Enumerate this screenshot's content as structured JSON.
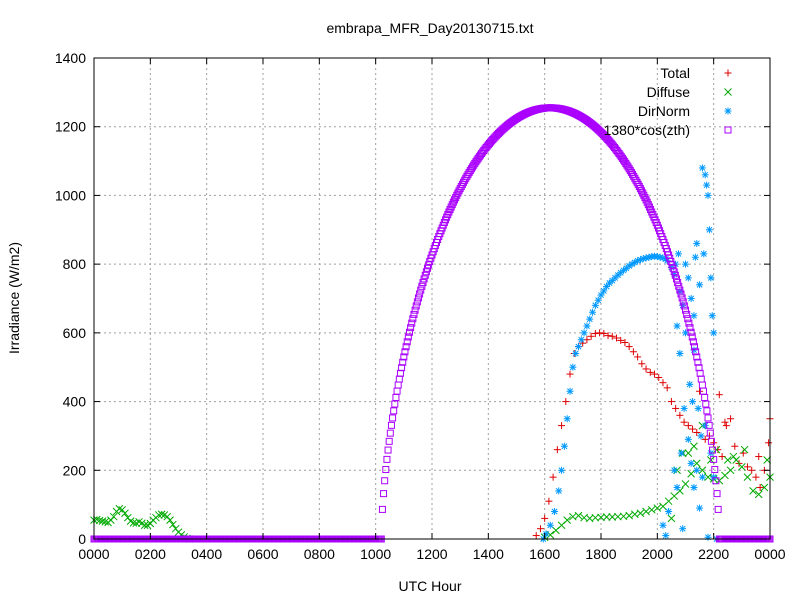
{
  "chart_data": {
    "type": "scatter",
    "title": "embrapa_MFR_Day20130715.txt",
    "xlabel": "UTC Hour",
    "ylabel": "Irradiance (W/m2)",
    "xlim": [
      0,
      24
    ],
    "ylim": [
      0,
      1400
    ],
    "x_ticks": [
      {
        "value": 0,
        "label": "0000"
      },
      {
        "value": 2,
        "label": "0200"
      },
      {
        "value": 4,
        "label": "0400"
      },
      {
        "value": 6,
        "label": "0600"
      },
      {
        "value": 8,
        "label": "0800"
      },
      {
        "value": 10,
        "label": "1000"
      },
      {
        "value": 12,
        "label": "1200"
      },
      {
        "value": 14,
        "label": "1400"
      },
      {
        "value": 16,
        "label": "1600"
      },
      {
        "value": 18,
        "label": "1800"
      },
      {
        "value": 20,
        "label": "2000"
      },
      {
        "value": 22,
        "label": "2200"
      },
      {
        "value": 24,
        "label": "0000"
      }
    ],
    "y_ticks": [
      0,
      200,
      400,
      600,
      800,
      1000,
      1200,
      1400
    ],
    "grid": true,
    "legend_position": "top-right",
    "series": [
      {
        "name": "Total",
        "marker": "plus",
        "color": "#dd0000",
        "points": [
          [
            15.7,
            10
          ],
          [
            15.85,
            30
          ],
          [
            16.0,
            60
          ],
          [
            16.15,
            110
          ],
          [
            16.3,
            180
          ],
          [
            16.45,
            260
          ],
          [
            16.6,
            330
          ],
          [
            16.75,
            400
          ],
          [
            16.9,
            480
          ],
          [
            17.05,
            540
          ],
          [
            17.2,
            560
          ],
          [
            17.35,
            570
          ],
          [
            17.5,
            580
          ],
          [
            17.65,
            590
          ],
          [
            17.8,
            598
          ],
          [
            17.95,
            600
          ],
          [
            18.1,
            598
          ],
          [
            18.25,
            592
          ],
          [
            18.4,
            590
          ],
          [
            18.55,
            585
          ],
          [
            18.7,
            578
          ],
          [
            18.85,
            572
          ],
          [
            19.0,
            560
          ],
          [
            19.15,
            545
          ],
          [
            19.3,
            530
          ],
          [
            19.45,
            510
          ],
          [
            19.6,
            495
          ],
          [
            19.75,
            485
          ],
          [
            19.9,
            480
          ],
          [
            20.05,
            470
          ],
          [
            20.2,
            455
          ],
          [
            20.35,
            440
          ],
          [
            20.5,
            400
          ],
          [
            20.65,
            380
          ],
          [
            20.8,
            360
          ],
          [
            20.95,
            340
          ],
          [
            21.1,
            330
          ],
          [
            21.25,
            320
          ],
          [
            21.4,
            310
          ],
          [
            21.55,
            300
          ],
          [
            21.7,
            290
          ],
          [
            21.85,
            300
          ],
          [
            22.0,
            280
          ],
          [
            22.15,
            260
          ],
          [
            22.3,
            240
          ],
          [
            22.45,
            330
          ],
          [
            22.6,
            350
          ],
          [
            22.75,
            270
          ],
          [
            22.9,
            220
          ],
          [
            23.05,
            250
          ],
          [
            23.2,
            210
          ],
          [
            23.35,
            200
          ],
          [
            23.5,
            180
          ],
          [
            23.65,
            150
          ],
          [
            23.8,
            200
          ],
          [
            23.95,
            280
          ],
          [
            24.0,
            350
          ],
          [
            21.5,
            430
          ],
          [
            22.2,
            420
          ],
          [
            22.4,
            340
          ],
          [
            23.6,
            240
          ]
        ]
      },
      {
        "name": "Diffuse",
        "marker": "cross",
        "color": "#00aa00",
        "points": [
          [
            0.0,
            55
          ],
          [
            0.1,
            57
          ],
          [
            0.2,
            54
          ],
          [
            0.3,
            52
          ],
          [
            0.4,
            50
          ],
          [
            0.5,
            48
          ],
          [
            0.6,
            55
          ],
          [
            0.7,
            65
          ],
          [
            0.8,
            80
          ],
          [
            0.9,
            88
          ],
          [
            1.0,
            85
          ],
          [
            1.1,
            75
          ],
          [
            1.2,
            62
          ],
          [
            1.3,
            52
          ],
          [
            1.4,
            47
          ],
          [
            1.5,
            46
          ],
          [
            1.6,
            50
          ],
          [
            1.7,
            46
          ],
          [
            1.8,
            40
          ],
          [
            1.9,
            40
          ],
          [
            2.0,
            45
          ],
          [
            2.1,
            55
          ],
          [
            2.2,
            62
          ],
          [
            2.3,
            70
          ],
          [
            2.4,
            72
          ],
          [
            2.5,
            70
          ],
          [
            2.6,
            65
          ],
          [
            2.7,
            55
          ],
          [
            2.8,
            42
          ],
          [
            2.9,
            30
          ],
          [
            3.0,
            20
          ],
          [
            3.1,
            12
          ],
          [
            3.2,
            6
          ],
          [
            3.3,
            2
          ],
          [
            3.4,
            0
          ],
          [
            16.0,
            5
          ],
          [
            16.2,
            12
          ],
          [
            16.4,
            25
          ],
          [
            16.6,
            40
          ],
          [
            16.8,
            55
          ],
          [
            17.0,
            65
          ],
          [
            17.2,
            68
          ],
          [
            17.4,
            62
          ],
          [
            17.6,
            60
          ],
          [
            17.8,
            62
          ],
          [
            18.0,
            63
          ],
          [
            18.2,
            64
          ],
          [
            18.4,
            64
          ],
          [
            18.6,
            65
          ],
          [
            18.8,
            66
          ],
          [
            19.0,
            68
          ],
          [
            19.2,
            72
          ],
          [
            19.4,
            75
          ],
          [
            19.6,
            80
          ],
          [
            19.8,
            85
          ],
          [
            20.0,
            90
          ],
          [
            20.2,
            95
          ],
          [
            20.4,
            110
          ],
          [
            20.6,
            125
          ],
          [
            20.8,
            140
          ],
          [
            21.0,
            160
          ],
          [
            21.2,
            190
          ],
          [
            21.4,
            220
          ],
          [
            21.6,
            200
          ],
          [
            21.8,
            180
          ],
          [
            22.0,
            175
          ],
          [
            22.2,
            170
          ],
          [
            22.4,
            185
          ],
          [
            22.6,
            200
          ],
          [
            22.8,
            230
          ],
          [
            23.0,
            210
          ],
          [
            23.2,
            180
          ],
          [
            23.4,
            140
          ],
          [
            23.6,
            130
          ],
          [
            23.8,
            150
          ],
          [
            24.0,
            180
          ],
          [
            20.9,
            250
          ],
          [
            21.3,
            270
          ],
          [
            21.6,
            330
          ],
          [
            22.1,
            260
          ],
          [
            22.7,
            240
          ],
          [
            23.1,
            260
          ],
          [
            23.9,
            230
          ],
          [
            20.5,
            60
          ],
          [
            20.7,
            200
          ],
          [
            21.1,
            250
          ],
          [
            21.9,
            230
          ],
          [
            22.5,
            230
          ]
        ]
      },
      {
        "name": "DirNorm",
        "marker": "star",
        "color": "#0099ff",
        "points": [
          [
            15.95,
            0
          ],
          [
            16.05,
            15
          ],
          [
            16.2,
            40
          ],
          [
            16.35,
            80
          ],
          [
            16.5,
            140
          ],
          [
            16.6,
            200
          ],
          [
            16.7,
            270
          ],
          [
            16.8,
            350
          ],
          [
            16.9,
            430
          ],
          [
            17.0,
            500
          ],
          [
            17.1,
            540
          ],
          [
            17.2,
            560
          ],
          [
            17.3,
            580
          ],
          [
            17.4,
            600
          ],
          [
            17.5,
            620
          ],
          [
            17.6,
            640
          ],
          [
            17.7,
            660
          ],
          [
            17.8,
            680
          ],
          [
            17.9,
            695
          ],
          [
            18.0,
            710
          ],
          [
            18.1,
            722
          ],
          [
            18.2,
            735
          ],
          [
            18.3,
            745
          ],
          [
            18.4,
            752
          ],
          [
            18.5,
            760
          ],
          [
            18.6,
            768
          ],
          [
            18.7,
            775
          ],
          [
            18.8,
            782
          ],
          [
            18.9,
            788
          ],
          [
            19.0,
            795
          ],
          [
            19.1,
            800
          ],
          [
            19.2,
            805
          ],
          [
            19.3,
            810
          ],
          [
            19.4,
            813
          ],
          [
            19.5,
            816
          ],
          [
            19.6,
            818
          ],
          [
            19.7,
            820
          ],
          [
            19.8,
            822
          ],
          [
            19.9,
            823
          ],
          [
            20.0,
            822
          ],
          [
            20.1,
            820
          ],
          [
            20.2,
            818
          ],
          [
            20.3,
            815
          ],
          [
            20.35,
            810
          ],
          [
            20.5,
            790
          ],
          [
            20.6,
            770
          ],
          [
            20.8,
            720
          ],
          [
            20.9,
            680
          ],
          [
            21.0,
            800
          ],
          [
            21.1,
            760
          ],
          [
            21.2,
            700
          ],
          [
            21.3,
            650
          ],
          [
            21.4,
            860
          ],
          [
            21.5,
            740
          ],
          [
            21.6,
            1080
          ],
          [
            21.7,
            1060
          ],
          [
            21.8,
            1000
          ],
          [
            21.85,
            900
          ],
          [
            21.9,
            760
          ],
          [
            21.95,
            650
          ],
          [
            22.0,
            600
          ],
          [
            21.3,
            550
          ],
          [
            21.0,
            600
          ],
          [
            20.7,
            620
          ],
          [
            20.8,
            540
          ],
          [
            20.95,
            380
          ],
          [
            21.15,
            450
          ],
          [
            21.25,
            400
          ],
          [
            21.45,
            380
          ],
          [
            21.55,
            300
          ],
          [
            21.7,
            330
          ],
          [
            21.9,
            250
          ],
          [
            20.85,
            250
          ],
          [
            21.1,
            290
          ],
          [
            20.2,
            40
          ],
          [
            20.4,
            80
          ],
          [
            20.6,
            200
          ],
          [
            21.6,
            180
          ],
          [
            22.0,
            180
          ],
          [
            21.2,
            220
          ],
          [
            20.3,
            10
          ],
          [
            20.9,
            30
          ],
          [
            21.5,
            90
          ],
          [
            21.8,
            5
          ],
          [
            22.1,
            0
          ],
          [
            21.4,
            200
          ],
          [
            20.7,
            150
          ],
          [
            21.3,
            150
          ],
          [
            20.65,
            800
          ],
          [
            20.75,
            830
          ],
          [
            21.35,
            820
          ],
          [
            21.65,
            830
          ],
          [
            21.75,
            1030
          ]
        ]
      },
      {
        "name": "1380*cos(zth)",
        "marker": "square",
        "color": "#aa00ff",
        "model": {
          "peak_value": 1255,
          "peak_hour": 16.2,
          "rise_hour": 10.2,
          "set_hour": 22.2
        },
        "baseline": 0
      }
    ]
  }
}
